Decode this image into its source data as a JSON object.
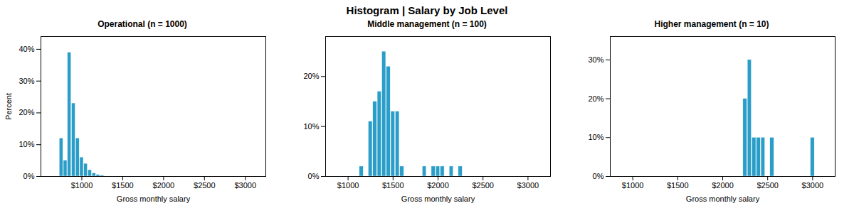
{
  "title": "Histogram | Salary by Job Level",
  "chart_data": [
    {
      "type": "bar",
      "title": "Operational (n = 1000)",
      "xlabel": "Gross monthly salary",
      "ylabel": "Percent",
      "x": [
        750,
        800,
        850,
        900,
        950,
        1000,
        1050,
        1100,
        1150,
        1200,
        1250
      ],
      "values": [
        12,
        5,
        39,
        23,
        12,
        6,
        4,
        2,
        1,
        0.5,
        0.3
      ],
      "bin_width": 50,
      "color": "#2a9dc8",
      "grid": false,
      "xlim": [
        500,
        3250
      ],
      "ylim": [
        0,
        44
      ],
      "xticks": [
        {
          "value": 1000,
          "label": "$1000"
        },
        {
          "value": 1500,
          "label": "$1500"
        },
        {
          "value": 2000,
          "label": "$2000"
        },
        {
          "value": 2500,
          "label": "$2500"
        },
        {
          "value": 3000,
          "label": "$3000"
        }
      ],
      "yticks": [
        {
          "value": 0,
          "label": "0%"
        },
        {
          "value": 10,
          "label": "10%"
        },
        {
          "value": 20,
          "label": "20%"
        },
        {
          "value": 30,
          "label": "30%"
        },
        {
          "value": 40,
          "label": "40%"
        }
      ]
    },
    {
      "type": "bar",
      "title": "Middle management (n = 100)",
      "xlabel": "Gross monthly salary",
      "x": [
        1150,
        1250,
        1300,
        1350,
        1400,
        1450,
        1500,
        1550,
        1600,
        1850,
        1950,
        2000,
        2050,
        2150,
        2250
      ],
      "values": [
        2,
        11,
        15,
        17,
        25,
        22,
        13,
        13,
        2,
        2,
        2,
        2,
        2,
        2,
        2
      ],
      "bin_width": 50,
      "color": "#2a9dc8",
      "grid": false,
      "xlim": [
        750,
        3250
      ],
      "ylim": [
        0,
        28
      ],
      "xticks": [
        {
          "value": 1000,
          "label": "$1000"
        },
        {
          "value": 1500,
          "label": "$1500"
        },
        {
          "value": 2000,
          "label": "$2000"
        },
        {
          "value": 2500,
          "label": "$2500"
        },
        {
          "value": 3000,
          "label": "$3000"
        }
      ],
      "yticks": [
        {
          "value": 0,
          "label": "0%"
        },
        {
          "value": 10,
          "label": "10%"
        },
        {
          "value": 20,
          "label": "20%"
        }
      ]
    },
    {
      "type": "bar",
      "title": "Higher management (n = 10)",
      "xlabel": "Gross monthly salary",
      "x": [
        2250,
        2300,
        2350,
        2400,
        2450,
        2550,
        3000
      ],
      "values": [
        20,
        30,
        10,
        10,
        10,
        10,
        10
      ],
      "bin_width": 50,
      "color": "#2a9dc8",
      "grid": false,
      "xlim": [
        750,
        3250
      ],
      "ylim": [
        0,
        36
      ],
      "xticks": [
        {
          "value": 1000,
          "label": "$1000"
        },
        {
          "value": 1500,
          "label": "$1500"
        },
        {
          "value": 2000,
          "label": "$2000"
        },
        {
          "value": 2500,
          "label": "$2500"
        },
        {
          "value": 3000,
          "label": "$3000"
        }
      ],
      "yticks": [
        {
          "value": 0,
          "label": "0%"
        },
        {
          "value": 10,
          "label": "10%"
        },
        {
          "value": 20,
          "label": "20%"
        },
        {
          "value": 30,
          "label": "30%"
        }
      ]
    }
  ]
}
